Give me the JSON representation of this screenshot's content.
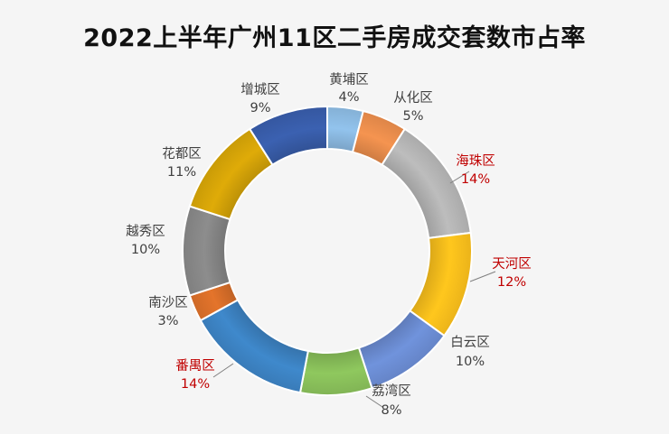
{
  "chart_data": {
    "type": "pie",
    "title": "2022上半年广州11区二手房成交套数市占率",
    "donut": true,
    "slices": [
      {
        "name": "黄埔区",
        "percent": 4,
        "label": "4%",
        "color": "#8fbfe8",
        "highlight": false
      },
      {
        "name": "从化区",
        "percent": 5,
        "label": "5%",
        "color": "#f0914e",
        "highlight": false
      },
      {
        "name": "海珠区",
        "percent": 14,
        "label": "14%",
        "color": "#b9b9b9",
        "highlight": true
      },
      {
        "name": "天河区",
        "percent": 12,
        "label": "12%",
        "color": "#ffc31c",
        "highlight": true
      },
      {
        "name": "白云区",
        "percent": 10,
        "label": "10%",
        "color": "#6e90d8",
        "highlight": false
      },
      {
        "name": "荔湾区",
        "percent": 8,
        "label": "8%",
        "color": "#8cc45c",
        "highlight": false
      },
      {
        "name": "番禺区",
        "percent": 14,
        "label": "14%",
        "color": "#3e86c8",
        "highlight": true
      },
      {
        "name": "南沙区",
        "percent": 3,
        "label": "3%",
        "color": "#e0722a",
        "highlight": false
      },
      {
        "name": "越秀区",
        "percent": 10,
        "label": "10%",
        "color": "#8a8a8a",
        "highlight": false
      },
      {
        "name": "花都区",
        "percent": 11,
        "label": "11%",
        "color": "#dba808",
        "highlight": false
      },
      {
        "name": "增城区",
        "percent": 9,
        "label": "9%",
        "color": "#3a5fae",
        "highlight": false
      }
    ],
    "label_colors": {
      "normal": "#404040",
      "highlight": "#c00000"
    },
    "legend": "none"
  }
}
